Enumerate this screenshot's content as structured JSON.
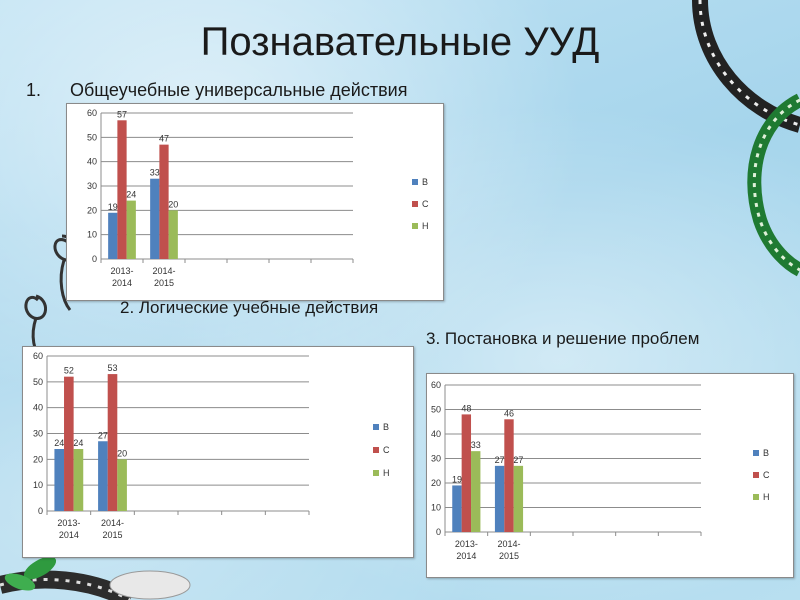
{
  "slide": {
    "title": "Познавательные УУД",
    "item1_number": "1.",
    "item1_text": "Общеучебные универсальные действия",
    "heading2": "2. Логические учебные действия",
    "heading3": "3. Постановка и решение проблем"
  },
  "colors": {
    "B": "#4f81bd",
    "C": "#c0504d",
    "H": "#9bbb59"
  },
  "chart_data": [
    {
      "type": "bar",
      "categories": [
        [
          "2013-",
          "2014"
        ],
        [
          "2014-",
          "2015"
        ]
      ],
      "series": [
        {
          "name": "В",
          "values": [
            19,
            33
          ]
        },
        {
          "name": "С",
          "values": [
            57,
            47
          ]
        },
        {
          "name": "Н",
          "values": [
            24,
            20
          ]
        }
      ],
      "ylim": [
        0,
        60
      ],
      "yticks": [
        0,
        10,
        20,
        30,
        40,
        50,
        60
      ],
      "grid": true,
      "legend": "right"
    },
    {
      "type": "bar",
      "categories": [
        [
          "2013-",
          "2014"
        ],
        [
          "2014-",
          "2015"
        ]
      ],
      "series": [
        {
          "name": "В",
          "values": [
            24,
            27
          ]
        },
        {
          "name": "С",
          "values": [
            52,
            53
          ]
        },
        {
          "name": "Н",
          "values": [
            24,
            20
          ]
        }
      ],
      "ylim": [
        0,
        60
      ],
      "yticks": [
        0,
        10,
        20,
        30,
        40,
        50,
        60
      ],
      "grid": true,
      "legend": "right"
    },
    {
      "type": "bar",
      "categories": [
        [
          "2013-",
          "2014"
        ],
        [
          "2014-",
          "2015"
        ]
      ],
      "series": [
        {
          "name": "В",
          "values": [
            19,
            27
          ]
        },
        {
          "name": "С",
          "values": [
            48,
            46
          ]
        },
        {
          "name": "Н",
          "values": [
            33,
            27
          ]
        }
      ],
      "ylim": [
        0,
        60
      ],
      "yticks": [
        0,
        10,
        20,
        30,
        40,
        50,
        60
      ],
      "grid": true,
      "legend": "right"
    }
  ]
}
